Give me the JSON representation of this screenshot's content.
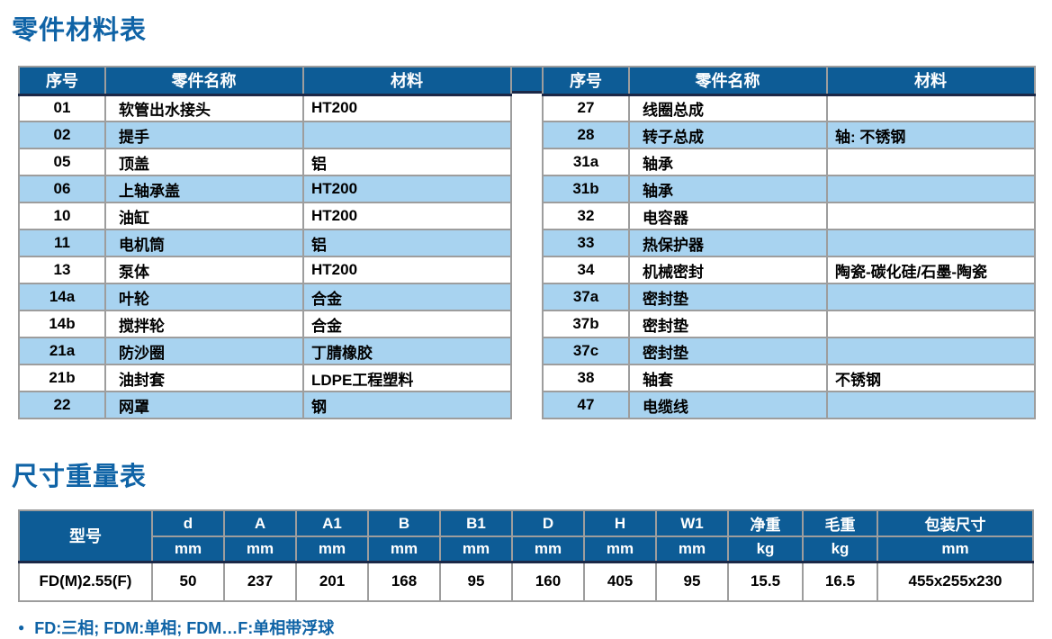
{
  "page": {
    "title1": "零件材料表",
    "title2": "尺寸重量表",
    "bullet": "●",
    "footnote": "FD:三相; FDM:单相; FDM…F:单相带浮球"
  },
  "colors": {
    "header_bg": "#0d5c96",
    "header_bottom_border": "#1b2847",
    "alt_row_bg": "#a8d3f0",
    "grid_border": "#9d9d9d",
    "title_blue": "#0f63a6"
  },
  "parts_table": {
    "headers": {
      "no": "序号",
      "name": "零件名称",
      "material": "材料"
    },
    "left_rows": [
      {
        "no": "01",
        "name": "软管出水接头",
        "material": "HT200"
      },
      {
        "no": "02",
        "name": "提手",
        "material": ""
      },
      {
        "no": "05",
        "name": "顶盖",
        "material": "铝"
      },
      {
        "no": "06",
        "name": "上轴承盖",
        "material": "HT200"
      },
      {
        "no": "10",
        "name": "油缸",
        "material": "HT200"
      },
      {
        "no": "11",
        "name": "电机筒",
        "material": "铝"
      },
      {
        "no": "13",
        "name": "泵体",
        "material": "HT200"
      },
      {
        "no": "14a",
        "name": "叶轮",
        "material": "合金"
      },
      {
        "no": "14b",
        "name": "搅拌轮",
        "material": "合金"
      },
      {
        "no": "21a",
        "name": "防沙圈",
        "material": "丁腈橡胶"
      },
      {
        "no": "21b",
        "name": "油封套",
        "material": "LDPE工程塑料"
      },
      {
        "no": "22",
        "name": "网罩",
        "material": "钢"
      }
    ],
    "right_rows": [
      {
        "no": "27",
        "name": "线圈总成",
        "material": ""
      },
      {
        "no": "28",
        "name": "转子总成",
        "material": "轴: 不锈钢"
      },
      {
        "no": "31a",
        "name": "轴承",
        "material": ""
      },
      {
        "no": "31b",
        "name": "轴承",
        "material": ""
      },
      {
        "no": "32",
        "name": "电容器",
        "material": ""
      },
      {
        "no": "33",
        "name": "热保护器",
        "material": ""
      },
      {
        "no": "34",
        "name": "机械密封",
        "material": "陶瓷-碳化硅/石墨-陶瓷"
      },
      {
        "no": "37a",
        "name": "密封垫",
        "material": ""
      },
      {
        "no": "37b",
        "name": "密封垫",
        "material": ""
      },
      {
        "no": "37c",
        "name": "密封垫",
        "material": ""
      },
      {
        "no": "38",
        "name": "轴套",
        "material": "不锈钢"
      },
      {
        "no": "47",
        "name": "电缆线",
        "material": ""
      }
    ]
  },
  "dimension_table": {
    "model_header": "型号",
    "columns": [
      {
        "label": "d",
        "unit": "mm"
      },
      {
        "label": "A",
        "unit": "mm"
      },
      {
        "label": "A1",
        "unit": "mm"
      },
      {
        "label": "B",
        "unit": "mm"
      },
      {
        "label": "B1",
        "unit": "mm"
      },
      {
        "label": "D",
        "unit": "mm"
      },
      {
        "label": "H",
        "unit": "mm"
      },
      {
        "label": "W1",
        "unit": "mm"
      },
      {
        "label": "净重",
        "unit": "kg"
      },
      {
        "label": "毛重",
        "unit": "kg"
      },
      {
        "label": "包装尺寸",
        "unit": "mm"
      }
    ],
    "row": {
      "model": "FD(M)2.55(F)",
      "values": [
        "50",
        "237",
        "201",
        "168",
        "95",
        "160",
        "405",
        "95",
        "15.5",
        "16.5",
        "455x255x230"
      ]
    }
  }
}
